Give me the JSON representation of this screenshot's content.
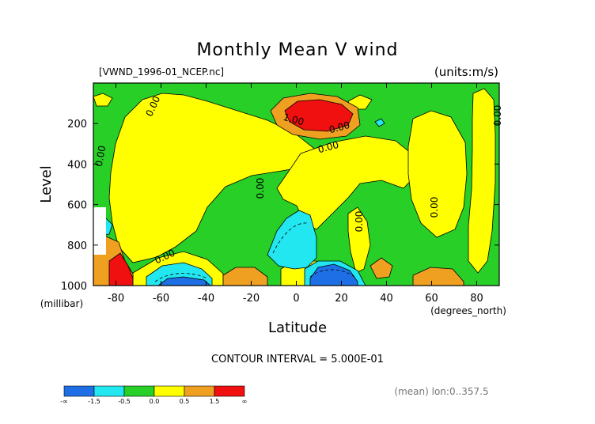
{
  "chart_data": {
    "type": "heatmap",
    "title": "Monthly Mean V wind",
    "subtitle_left": "[VWND_1996-01_NCEP.nc]",
    "units": "(units:m/s)",
    "xlabel": "Latitude",
    "xunits": "(degrees_north)",
    "ylabel": "Level",
    "yunits": "(millibar)",
    "x_range": [
      -90,
      90
    ],
    "y_range": [
      1000,
      0
    ],
    "x_ticks": [
      "-80",
      "-60",
      "-40",
      "-20",
      "0",
      "20",
      "40",
      "60",
      "80"
    ],
    "y_ticks": [
      "200",
      "400",
      "600",
      "800",
      "1000"
    ],
    "contour_interval": "CONTOUR INTERVAL = 5.000E-01",
    "footer_note": "(mean) lon:0..357.5",
    "contour_labels": [
      "0.00",
      "0.00",
      "0.00",
      "0.00",
      "0.00",
      "0.00",
      "0.00",
      "0.00",
      "0.00",
      "1.00"
    ],
    "colorbar": {
      "colors": [
        "#1e6fe6",
        "#22e6f0",
        "#27cf27",
        "#ffff00",
        "#f0a020",
        "#f01010"
      ],
      "labels": [
        "-∞",
        "-1.5",
        "-0.5",
        "0.0",
        "0.5",
        "1.5",
        "∞"
      ]
    },
    "grid": false,
    "legend_placement": "bottom-left"
  }
}
